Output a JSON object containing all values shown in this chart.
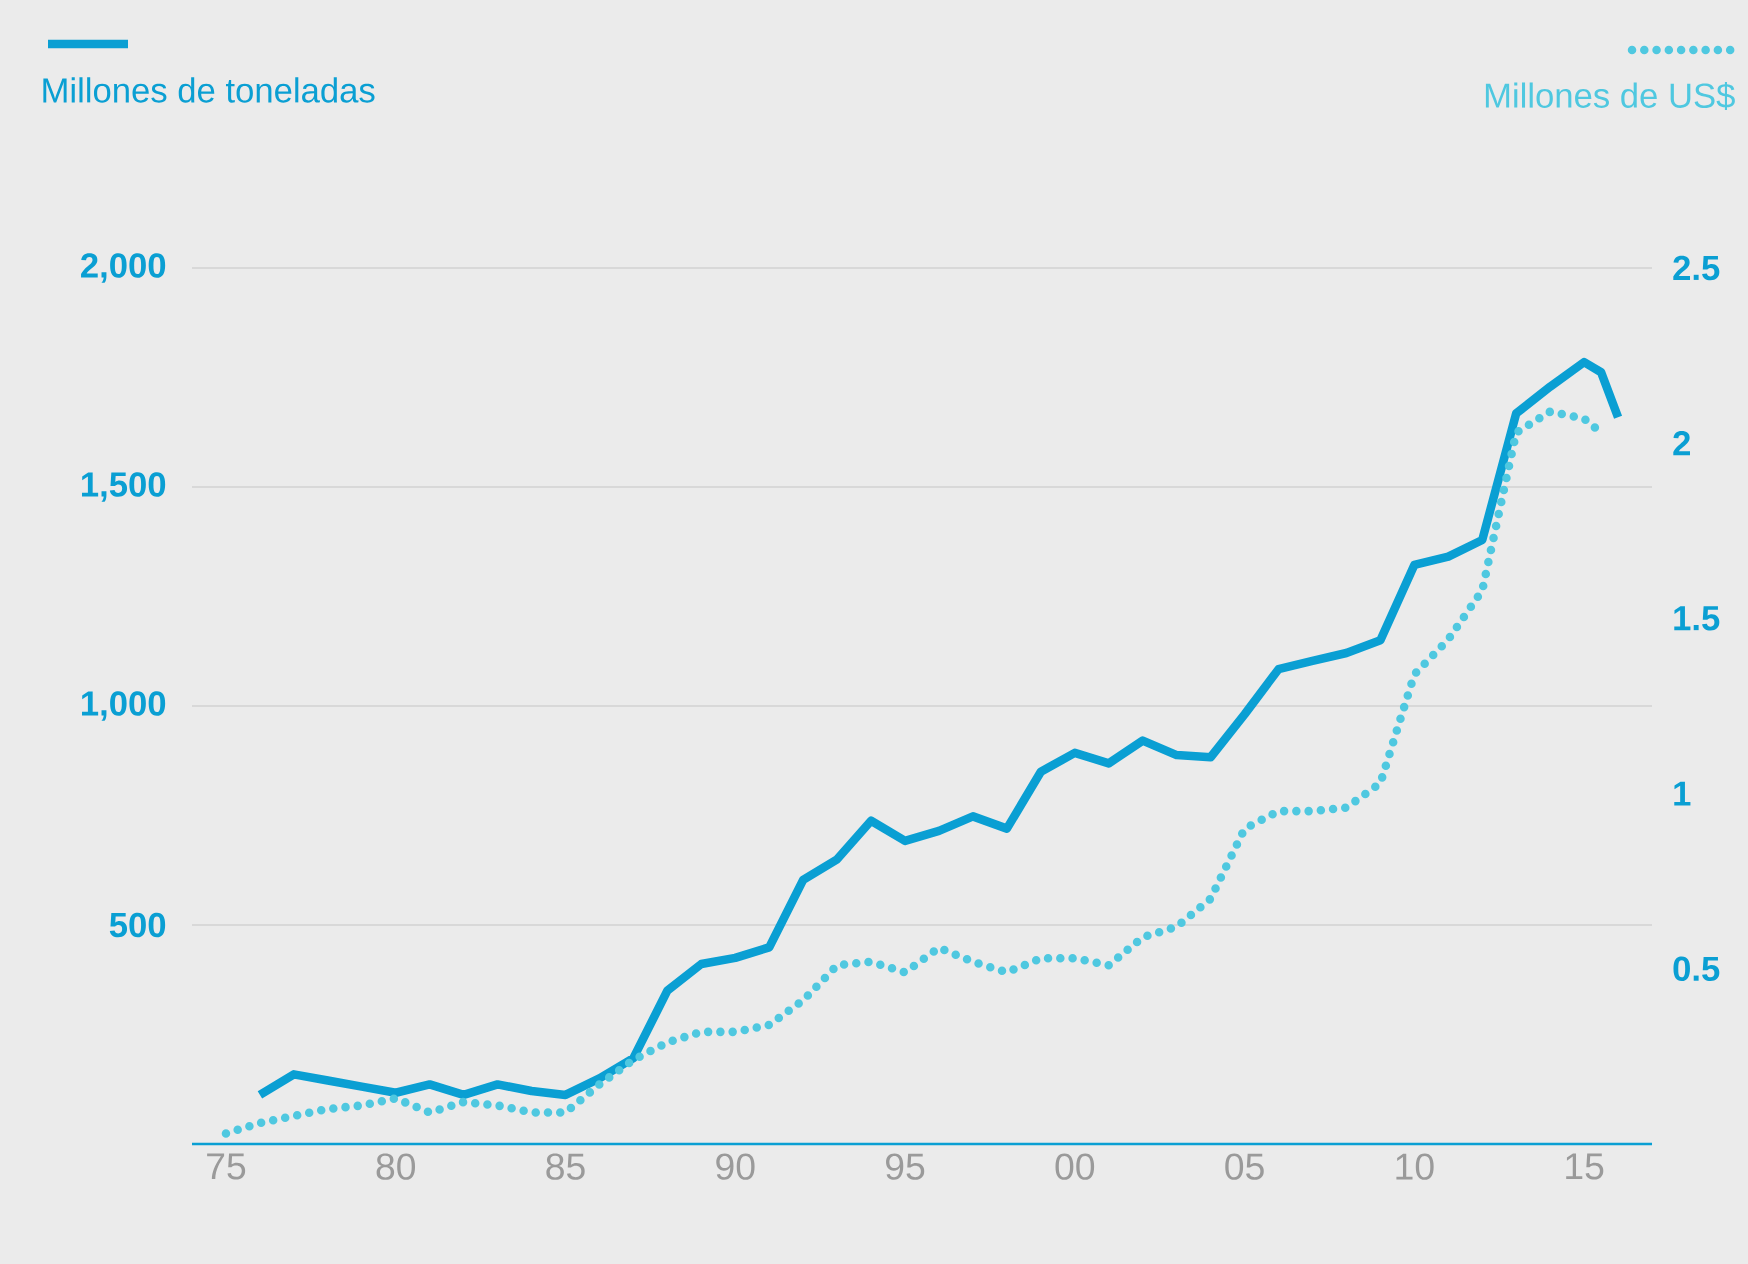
{
  "chart_data": {
    "type": "line",
    "x": [
      1976,
      1977,
      1978,
      1979,
      1980,
      1981,
      1982,
      1983,
      1984,
      1985,
      1986,
      1987,
      1988,
      1989,
      1990,
      1991,
      1992,
      1993,
      1994,
      1995,
      1996,
      1997,
      1998,
      1999,
      2000,
      2001,
      2002,
      2003,
      2004,
      2005,
      2006,
      2007,
      2008,
      2009,
      2010,
      2011,
      2012,
      2013,
      2014,
      2015,
      2015.5,
      2016
    ],
    "series": [
      {
        "name": "Millones de toneladas",
        "color": "#0a9fd3",
        "line_style": "solid",
        "values": [
          112,
          159,
          145,
          131,
          117,
          136,
          112,
          136,
          121,
          112,
          150,
          196,
          350,
          411,
          425,
          449,
          603,
          650,
          738,
          692,
          715,
          748,
          720,
          850,
          893,
          869,
          921,
          888,
          883,
          981,
          1084,
          1103,
          1121,
          1150,
          1322,
          1341,
          1379,
          1668,
          1729,
          1785,
          1762,
          1659
        ]
      },
      {
        "name": "Millones de US$",
        "color": "#4fc8e0",
        "line_style": "dotted",
        "axis": "y2",
        "x": [
          1975,
          1976,
          1977,
          1978,
          1979,
          1980,
          1981,
          1982,
          1983,
          1984,
          1985,
          1986,
          1987,
          1988,
          1989,
          1990,
          1991,
          1992,
          1993,
          1994,
          1995,
          1996,
          1997,
          1998,
          1999,
          2000,
          2001,
          2002,
          2003,
          2004,
          2005,
          2006,
          2007,
          2008,
          2009,
          2010,
          2011,
          2012,
          2013,
          2014,
          2015,
          2015.5
        ],
        "values": [
          0.03,
          0.06,
          0.08,
          0.1,
          0.11,
          0.13,
          0.09,
          0.12,
          0.11,
          0.09,
          0.09,
          0.17,
          0.24,
          0.29,
          0.32,
          0.32,
          0.34,
          0.41,
          0.51,
          0.52,
          0.49,
          0.56,
          0.52,
          0.49,
          0.53,
          0.53,
          0.51,
          0.59,
          0.62,
          0.7,
          0.9,
          0.95,
          0.95,
          0.96,
          1.03,
          1.34,
          1.44,
          1.58,
          2.03,
          2.09,
          2.07,
          2.03
        ]
      }
    ],
    "xlim": [
      1974,
      2017
    ],
    "xticks": [
      {
        "value": 1975,
        "label": "75"
      },
      {
        "value": 1980,
        "label": "80"
      },
      {
        "value": 1985,
        "label": "85"
      },
      {
        "value": 1990,
        "label": "90"
      },
      {
        "value": 1995,
        "label": "95"
      },
      {
        "value": 2000,
        "label": "00"
      },
      {
        "value": 2005,
        "label": "05"
      },
      {
        "value": 2010,
        "label": "10"
      },
      {
        "value": 2015,
        "label": "15"
      }
    ],
    "ylim": [
      0,
      2000
    ],
    "yticks": [
      500,
      {
        "value": 1000,
        "label": "1,000"
      },
      {
        "value": 1500,
        "label": "1,500"
      },
      {
        "value": 2000,
        "label": "2,000"
      }
    ],
    "y2lim": [
      0,
      2.5
    ],
    "y2ticks": [
      0.5,
      1,
      1.5,
      2,
      2.5
    ],
    "grid": "y",
    "legend": "top"
  }
}
